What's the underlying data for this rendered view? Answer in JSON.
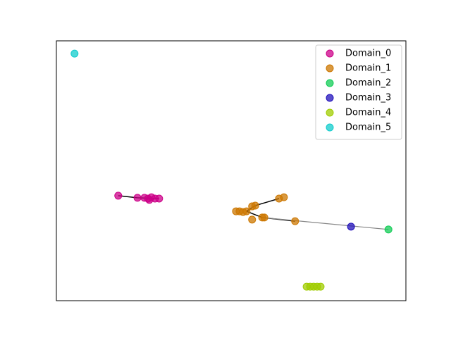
{
  "chart_data": {
    "type": "scatter",
    "xlim": [
      0,
      100
    ],
    "ylim": [
      0,
      100
    ],
    "legend": "upper right",
    "marker_opacity": 0.75,
    "series": [
      {
        "name": "Domain_0",
        "color": "#cc0088",
        "x": [
          17.7,
          23.2,
          25.2,
          26.2,
          27.2,
          28.2,
          29.4,
          26.6
        ],
        "values": [
          40.4,
          39.6,
          39.6,
          39.3,
          39.8,
          39.3,
          39.3,
          38.8
        ]
      },
      {
        "name": "Domain_1",
        "color": "#cc7700",
        "x": [
          52.4,
          53.4,
          54.4,
          51.4,
          56.0,
          56.9,
          56.0,
          58.9,
          59.5,
          63.7,
          65.1,
          68.3
        ],
        "values": [
          34.4,
          34.1,
          34.4,
          34.4,
          36.3,
          36.6,
          31.2,
          32.0,
          32.0,
          39.3,
          39.8,
          30.6
        ]
      },
      {
        "name": "Domain_2",
        "color": "#11cc55",
        "x": [
          95.0
        ],
        "values": [
          27.4
        ]
      },
      {
        "name": "Domain_3",
        "color": "#2211bb",
        "x": [
          84.3
        ],
        "values": [
          28.5
        ]
      },
      {
        "name": "Domain_4",
        "color": "#a0cc00",
        "x": [
          71.6,
          72.6,
          73.6,
          74.6,
          75.6
        ],
        "values": [
          5.4,
          5.4,
          5.4,
          5.4,
          5.4
        ]
      },
      {
        "name": "Domain_5",
        "color": "#11cccc",
        "x": [
          5.2
        ],
        "values": [
          95.1
        ]
      }
    ],
    "lines": [
      {
        "color": "#000000",
        "x": [
          17.7,
          23.2,
          29.4
        ],
        "values": [
          40.4,
          39.6,
          39.3
        ]
      },
      {
        "color": "#000000",
        "x": [
          54.4,
          56.9,
          63.7
        ],
        "values": [
          34.4,
          36.6,
          39.3
        ]
      },
      {
        "color": "#000000",
        "x": [
          54.4,
          58.9,
          68.3
        ],
        "values": [
          34.4,
          32.0,
          30.6
        ]
      },
      {
        "color": "#888888",
        "x": [
          58.9,
          95.0
        ],
        "values": [
          32.0,
          27.4
        ]
      }
    ]
  }
}
